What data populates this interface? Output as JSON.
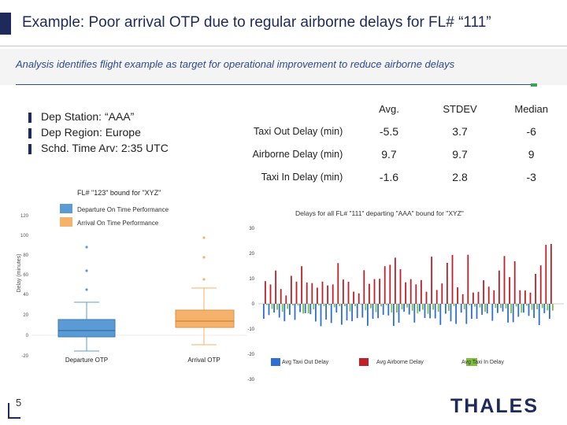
{
  "slide": {
    "title": "Example: Poor arrival OTP due to regular airborne delays for FL# “111”",
    "subtitle": "Analysis identifies flight example as target for operational improvement to reduce airborne delays",
    "page_number": "5",
    "logo": "THALES"
  },
  "details": [
    "Dep Station:  “AAA”",
    "Dep Region: Europe",
    "Schd. Time Arv: 2:35 UTC"
  ],
  "stats": {
    "headers": [
      "Avg.",
      "STDEV",
      "Median"
    ],
    "rows": [
      {
        "label": "Taxi Out Delay (min)",
        "values": [
          "-5.5",
          "3.7",
          "-6"
        ]
      },
      {
        "label": "Airborne Delay (min)",
        "values": [
          "9.7",
          "9.7",
          "9"
        ]
      },
      {
        "label": "Taxi In Delay (min)",
        "values": [
          "-1.6",
          "2.8",
          "-3"
        ]
      }
    ]
  },
  "boxplot": {
    "title": "FL# \"123\" bound for \"XYZ\"",
    "legend": [
      "Departure On Time Performance",
      "Arrival On Time Performance"
    ],
    "colors": [
      "#5b9bd5",
      "#f4b26a"
    ],
    "ylabel": "Delay (minutes)",
    "yticks": [
      "120",
      "100",
      "80",
      "60",
      "40",
      "20",
      "0",
      "-20"
    ],
    "categories": [
      "Departure OTP",
      "Arrival OTP"
    ]
  },
  "chart_data": {
    "type": "bar",
    "title": "Delays for all FL# \"111\" departing \"AAA\" bound for \"XYZ\"",
    "yticks": [
      "30",
      "20",
      "10",
      "0",
      "-10",
      "-20",
      "-30"
    ],
    "ylim": [
      -30,
      30
    ],
    "series": [
      {
        "name": "Avg Taxi Out Delay",
        "color": "#2e6fd1"
      },
      {
        "name": "Avg Airborne Delay",
        "color": "#c0202a"
      },
      {
        "name": "Avg Taxi In Delay",
        "color": "#7fbf3f"
      }
    ]
  }
}
